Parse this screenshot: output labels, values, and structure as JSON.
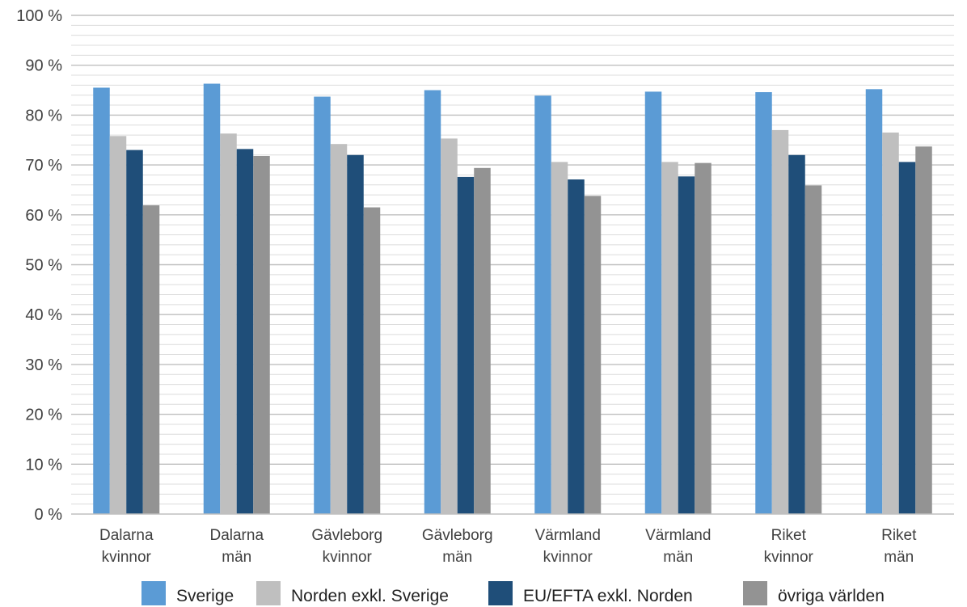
{
  "chart_data": {
    "type": "bar",
    "title": "",
    "xlabel": "",
    "ylabel": "",
    "ylim": [
      0,
      100
    ],
    "yticks": [
      "0 %",
      "10 %",
      "20 %",
      "30 %",
      "40 %",
      "50 %",
      "60 %",
      "70 %",
      "80 %",
      "90 %",
      "100 %"
    ],
    "grid": "horizontal",
    "legend": "bottom",
    "categories": [
      [
        "Dalarna",
        "kvinnor"
      ],
      [
        "Dalarna",
        "män"
      ],
      [
        "Gävleborg",
        "kvinnor"
      ],
      [
        "Gävleborg",
        "män"
      ],
      [
        "Värmland",
        "kvinnor"
      ],
      [
        "Värmland",
        "män"
      ],
      [
        "Riket",
        "kvinnor"
      ],
      [
        "Riket",
        "män"
      ]
    ],
    "series": [
      {
        "name": "Sverige",
        "color": "#5b9bd5",
        "values": [
          85.5,
          86.3,
          83.7,
          85.0,
          83.9,
          84.7,
          84.6,
          85.2
        ]
      },
      {
        "name": "Norden exkl. Sverige",
        "color": "#bfbfbf",
        "values": [
          75.8,
          76.3,
          74.2,
          75.3,
          70.6,
          70.6,
          77.0,
          76.5
        ]
      },
      {
        "name": "EU/EFTA exkl. Norden",
        "color": "#1f4e79",
        "values": [
          73.0,
          73.2,
          72.0,
          67.6,
          67.1,
          67.7,
          72.0,
          70.6
        ]
      },
      {
        "name": "övriga världen",
        "color": "#939393",
        "values": [
          61.9,
          71.8,
          61.5,
          69.4,
          63.8,
          70.4,
          65.9,
          73.7
        ]
      }
    ]
  }
}
